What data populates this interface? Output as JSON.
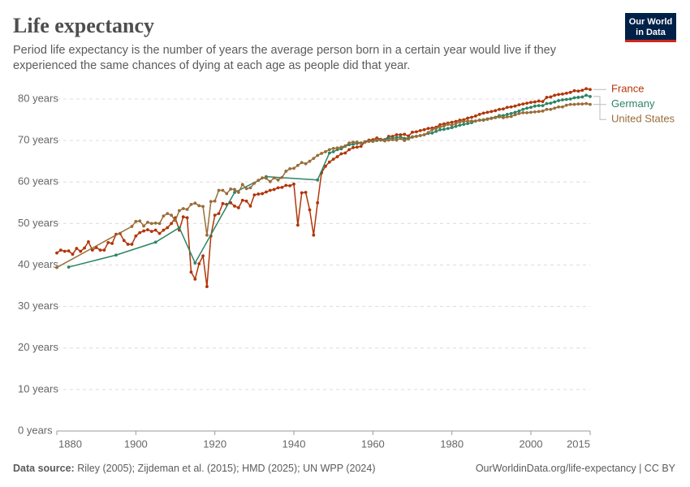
{
  "chart_data": {
    "type": "line",
    "title": "Life expectancy",
    "subtitle": [
      "Period life expectancy is the number of years the average person born in a certain year would live if they",
      "experienced the same chances of dying at each age as people did that year."
    ],
    "xlim": [
      1880,
      2015
    ],
    "ylim": [
      0,
      80
    ],
    "xticks": [
      1880,
      1900,
      1920,
      1940,
      1960,
      1980,
      2000,
      2015
    ],
    "yticks": [
      {
        "value": 0,
        "label": "0 years"
      },
      {
        "value": 10,
        "label": "10 years"
      },
      {
        "value": 20,
        "label": "20 years"
      },
      {
        "value": 30,
        "label": "30 years"
      },
      {
        "value": 40,
        "label": "40 years"
      },
      {
        "value": 50,
        "label": "50 years"
      },
      {
        "value": 60,
        "label": "60 years"
      },
      {
        "value": 70,
        "label": "70 years"
      },
      {
        "value": 80,
        "label": "80 years"
      }
    ],
    "grid": true,
    "series": [
      {
        "name": "France",
        "color": "#b13507",
        "x": [
          1880,
          1881,
          1882,
          1883,
          1884,
          1885,
          1886,
          1887,
          1888,
          1889,
          1890,
          1891,
          1892,
          1893,
          1894,
          1895,
          1896,
          1897,
          1898,
          1899,
          1900,
          1901,
          1902,
          1903,
          1904,
          1905,
          1906,
          1907,
          1908,
          1909,
          1910,
          1911,
          1912,
          1913,
          1914,
          1915,
          1916,
          1917,
          1918,
          1919,
          1920,
          1921,
          1922,
          1923,
          1924,
          1925,
          1926,
          1927,
          1928,
          1929,
          1930,
          1931,
          1932,
          1933,
          1934,
          1935,
          1936,
          1937,
          1938,
          1939,
          1940,
          1941,
          1942,
          1943,
          1944,
          1945,
          1946,
          1947,
          1948,
          1949,
          1950,
          1951,
          1952,
          1953,
          1954,
          1955,
          1956,
          1957,
          1958,
          1959,
          1960,
          1961,
          1962,
          1963,
          1964,
          1965,
          1966,
          1967,
          1968,
          1969,
          1970,
          1971,
          1972,
          1973,
          1974,
          1975,
          1976,
          1977,
          1978,
          1979,
          1980,
          1981,
          1982,
          1983,
          1984,
          1985,
          1986,
          1987,
          1988,
          1989,
          1990,
          1991,
          1992,
          1993,
          1994,
          1995,
          1996,
          1997,
          1998,
          1999,
          2000,
          2001,
          2002,
          2003,
          2004,
          2005,
          2006,
          2007,
          2008,
          2009,
          2010,
          2011,
          2012,
          2013,
          2014,
          2015
        ],
        "values": [
          42.9,
          43.6,
          43.3,
          43.4,
          42.6,
          44.0,
          43.3,
          44.1,
          45.6,
          43.6,
          44.2,
          43.6,
          43.6,
          45.4,
          45.2,
          47.4,
          47.6,
          45.9,
          45.0,
          45.0,
          47.0,
          47.8,
          48.2,
          48.5,
          48.1,
          48.4,
          47.6,
          48.4,
          49.0,
          50.0,
          51.4,
          48.4,
          51.6,
          51.4,
          38.3,
          36.6,
          40.3,
          42.2,
          34.8,
          47.0,
          52.0,
          52.4,
          54.8,
          54.6,
          55.0,
          54.2,
          53.8,
          55.6,
          55.4,
          54.2,
          56.9,
          57.1,
          57.2,
          57.6,
          58.0,
          58.2,
          58.6,
          58.7,
          59.2,
          59.1,
          59.5,
          49.6,
          57.4,
          57.5,
          53.3,
          47.2,
          55.0,
          62.2,
          63.8,
          64.8,
          65.5,
          66.1,
          66.8,
          67.0,
          67.8,
          68.3,
          68.4,
          68.6,
          69.7,
          70.1,
          70.2,
          70.6,
          70.3,
          70.2,
          71.0,
          71.0,
          71.4,
          71.4,
          71.5,
          71.1,
          72.0,
          72.1,
          72.4,
          72.6,
          72.9,
          73.0,
          73.2,
          73.8,
          74.0,
          74.2,
          74.4,
          74.6,
          74.9,
          75.0,
          75.4,
          75.6,
          75.9,
          76.3,
          76.6,
          76.8,
          77.0,
          77.2,
          77.5,
          77.6,
          78.0,
          78.1,
          78.3,
          78.6,
          78.8,
          79.0,
          79.2,
          79.3,
          79.5,
          79.4,
          80.4,
          80.5,
          80.9,
          81.1,
          81.2,
          81.4,
          81.6,
          82.0,
          81.9,
          82.1,
          82.5,
          82.3
        ]
      },
      {
        "name": "Germany",
        "color": "#2c8465",
        "x": [
          1883,
          1895,
          1905,
          1911,
          1915,
          1925,
          1933,
          1946,
          1949,
          1950,
          1951,
          1952,
          1953,
          1954,
          1955,
          1956,
          1957,
          1958,
          1959,
          1960,
          1961,
          1962,
          1963,
          1964,
          1965,
          1966,
          1967,
          1968,
          1969,
          1970,
          1971,
          1972,
          1973,
          1974,
          1975,
          1976,
          1977,
          1978,
          1979,
          1980,
          1981,
          1982,
          1983,
          1984,
          1985,
          1986,
          1987,
          1988,
          1989,
          1990,
          1991,
          1992,
          1993,
          1994,
          1995,
          1996,
          1997,
          1998,
          1999,
          2000,
          2001,
          2002,
          2003,
          2004,
          2005,
          2006,
          2007,
          2008,
          2009,
          2010,
          2011,
          2012,
          2013,
          2014,
          2015
        ],
        "values": [
          39.5,
          42.4,
          45.5,
          49.0,
          40.5,
          57.5,
          61.3,
          60.5,
          67.0,
          67.3,
          67.8,
          68.0,
          68.6,
          69.0,
          69.1,
          69.3,
          69.4,
          69.6,
          69.8,
          69.8,
          70.0,
          70.1,
          70.2,
          70.6,
          70.5,
          70.7,
          70.9,
          70.5,
          70.6,
          70.9,
          71.0,
          71.2,
          71.4,
          71.7,
          71.8,
          72.2,
          72.6,
          72.7,
          72.9,
          73.1,
          73.4,
          73.7,
          73.9,
          74.1,
          74.3,
          74.7,
          74.9,
          75.0,
          75.2,
          75.4,
          75.6,
          76.0,
          76.0,
          76.3,
          76.5,
          76.8,
          77.1,
          77.5,
          77.8,
          78.0,
          78.3,
          78.4,
          78.4,
          78.9,
          79.0,
          79.3,
          79.6,
          79.8,
          79.9,
          80.0,
          80.3,
          80.4,
          80.5,
          80.9,
          80.6
        ]
      },
      {
        "name": "United States",
        "color": "#996d39",
        "x": [
          1880,
          1899,
          1900,
          1901,
          1902,
          1903,
          1904,
          1905,
          1906,
          1907,
          1908,
          1909,
          1910,
          1911,
          1912,
          1913,
          1914,
          1915,
          1916,
          1917,
          1918,
          1919,
          1920,
          1921,
          1922,
          1923,
          1924,
          1925,
          1926,
          1927,
          1928,
          1929,
          1930,
          1931,
          1932,
          1933,
          1934,
          1935,
          1936,
          1937,
          1938,
          1939,
          1940,
          1941,
          1942,
          1943,
          1944,
          1945,
          1946,
          1947,
          1948,
          1949,
          1950,
          1951,
          1952,
          1953,
          1954,
          1955,
          1956,
          1957,
          1958,
          1959,
          1960,
          1961,
          1962,
          1963,
          1964,
          1965,
          1966,
          1967,
          1968,
          1969,
          1970,
          1971,
          1972,
          1973,
          1974,
          1975,
          1976,
          1977,
          1978,
          1979,
          1980,
          1981,
          1982,
          1983,
          1984,
          1985,
          1986,
          1987,
          1988,
          1989,
          1990,
          1991,
          1992,
          1993,
          1994,
          1995,
          1996,
          1997,
          1998,
          1999,
          2000,
          2001,
          2002,
          2003,
          2004,
          2005,
          2006,
          2007,
          2008,
          2009,
          2010,
          2011,
          2012,
          2013,
          2014,
          2015
        ],
        "values": [
          39.4,
          49.3,
          50.5,
          50.6,
          49.4,
          50.3,
          50.0,
          50.1,
          50.0,
          51.8,
          52.4,
          52.0,
          50.7,
          53.1,
          53.6,
          53.4,
          54.6,
          54.9,
          54.3,
          54.1,
          47.2,
          55.3,
          55.4,
          58.0,
          58.0,
          57.2,
          58.3,
          58.2,
          57.5,
          59.4,
          58.4,
          58.6,
          59.7,
          60.4,
          61.0,
          60.9,
          60.1,
          61.0,
          60.5,
          61.1,
          62.6,
          63.2,
          63.3,
          64.0,
          64.7,
          64.4,
          65.0,
          65.7,
          66.4,
          66.9,
          67.3,
          67.8,
          68.1,
          68.2,
          68.4,
          68.7,
          69.4,
          69.6,
          69.6,
          69.4,
          69.6,
          69.8,
          69.8,
          70.2,
          70.1,
          69.9,
          70.1,
          70.2,
          70.1,
          70.5,
          70.0,
          70.4,
          70.8,
          71.0,
          71.2,
          71.4,
          71.9,
          72.6,
          72.9,
          73.3,
          73.5,
          73.9,
          73.7,
          74.1,
          74.5,
          74.6,
          74.7,
          74.7,
          74.7,
          74.9,
          74.9,
          75.1,
          75.3,
          75.5,
          75.7,
          75.5,
          75.7,
          75.8,
          76.2,
          76.5,
          76.7,
          76.7,
          76.8,
          76.9,
          77.0,
          77.1,
          77.5,
          77.5,
          77.8,
          78.1,
          78.1,
          78.5,
          78.7,
          78.7,
          78.8,
          78.8,
          78.9,
          78.7
        ]
      }
    ]
  },
  "logo": [
    "Our World",
    "in Data"
  ],
  "footer": {
    "source_label": "Data source:",
    "source": "Riley (2005); Zijdeman et al. (2015); HMD (2025); UN WPP (2024)",
    "url": "OurWorldinData.org/life-expectancy | CC BY"
  }
}
